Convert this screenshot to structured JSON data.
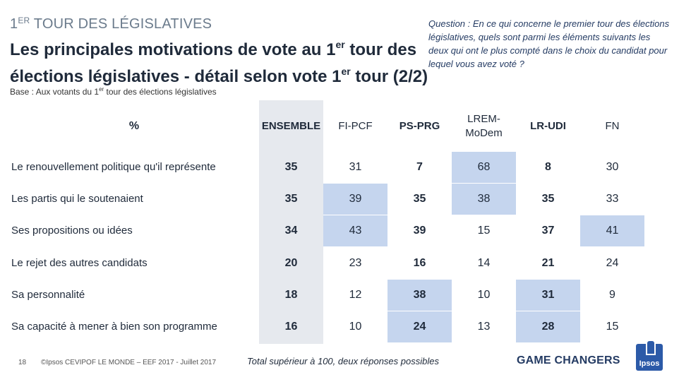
{
  "header": {
    "kicker_main": "1",
    "kicker_sup": "ER",
    "kicker_rest": " TOUR DES LÉGISLATIVES",
    "title_line1_a": "Les principales motivations de vote au 1",
    "title_line1_sup": "er",
    "title_line1_b": " tour des",
    "title_line2_a": "élections législatives - détail selon vote 1",
    "title_line2_sup": "er",
    "title_line2_b": " tour (2/2)"
  },
  "question": "Question : En ce qui concerne le premier tour des élections législatives, quels sont parmi les éléments suivants les deux qui ont le plus compté dans le choix du candidat pour lequel vous avez voté ?",
  "base": {
    "a": "Base : Aux votants du 1",
    "sup": "er",
    "b": " tour des élections législatives"
  },
  "table": {
    "corner": "%",
    "columns": [
      "ENSEMBLE",
      "FI-PCF",
      "PS-PRG",
      "LREM-MoDem",
      "LR-UDI",
      "FN"
    ],
    "rows": [
      {
        "label": "Le renouvellement politique qu'il représente",
        "values": [
          "35",
          "31",
          "7",
          "68",
          "8",
          "30"
        ]
      },
      {
        "label": "Les partis qui le soutenaient",
        "values": [
          "35",
          "39",
          "35",
          "38",
          "35",
          "33"
        ]
      },
      {
        "label": "Ses propositions ou idées",
        "values": [
          "34",
          "43",
          "39",
          "15",
          "37",
          "41"
        ]
      },
      {
        "label": "Le rejet des autres candidats",
        "values": [
          "20",
          "23",
          "16",
          "14",
          "21",
          "24"
        ]
      },
      {
        "label": "Sa personnalité",
        "values": [
          "18",
          "12",
          "38",
          "10",
          "31",
          "9"
        ]
      },
      {
        "label": "Sa capacité à mener à bien son programme",
        "values": [
          "16",
          "10",
          "24",
          "13",
          "28",
          "15"
        ]
      }
    ]
  },
  "footer": {
    "page_number": "18",
    "source": "©Ipsos CEVIPOF LE MONDE – EEF 2017 - Juillet 2017",
    "note": "Total supérieur à 100, deux réponses possibles",
    "tagline": "GAME CHANGERS",
    "logo_text": "Ipsos"
  },
  "colors": {
    "highlight": "#c5d5ee",
    "column_bg": "#e6e9ee",
    "brand": "#2c5aa8"
  }
}
